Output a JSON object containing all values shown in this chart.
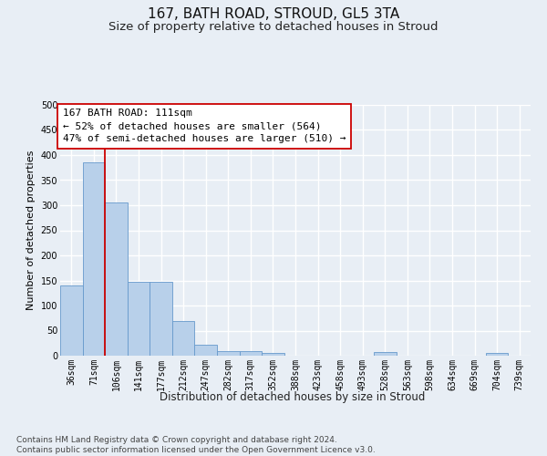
{
  "title1": "167, BATH ROAD, STROUD, GL5 3TA",
  "title2": "Size of property relative to detached houses in Stroud",
  "xlabel": "Distribution of detached houses by size in Stroud",
  "ylabel": "Number of detached properties",
  "bar_labels": [
    "36sqm",
    "71sqm",
    "106sqm",
    "141sqm",
    "177sqm",
    "212sqm",
    "247sqm",
    "282sqm",
    "317sqm",
    "352sqm",
    "388sqm",
    "423sqm",
    "458sqm",
    "493sqm",
    "528sqm",
    "563sqm",
    "598sqm",
    "634sqm",
    "669sqm",
    "704sqm",
    "739sqm"
  ],
  "bar_values": [
    140,
    385,
    305,
    148,
    148,
    70,
    22,
    10,
    10,
    5,
    0,
    0,
    0,
    0,
    8,
    0,
    0,
    0,
    0,
    5,
    0
  ],
  "bar_color": "#b8d0ea",
  "bar_edge_color": "#6699cc",
  "vline_pos": 1.5,
  "vline_color": "#cc0000",
  "annotation_text": "167 BATH ROAD: 111sqm\n← 52% of detached houses are smaller (564)\n47% of semi-detached houses are larger (510) →",
  "annotation_box_color": "#ffffff",
  "annotation_box_edge": "#cc0000",
  "ylim": [
    0,
    500
  ],
  "yticks": [
    0,
    50,
    100,
    150,
    200,
    250,
    300,
    350,
    400,
    450,
    500
  ],
  "footer": "Contains HM Land Registry data © Crown copyright and database right 2024.\nContains public sector information licensed under the Open Government Licence v3.0.",
  "bg_color": "#e8eef5",
  "grid_color": "#ffffff",
  "title1_fontsize": 11,
  "title2_fontsize": 9.5,
  "xlabel_fontsize": 8.5,
  "ylabel_fontsize": 8,
  "tick_fontsize": 7,
  "annotation_fontsize": 8,
  "footer_fontsize": 6.5
}
